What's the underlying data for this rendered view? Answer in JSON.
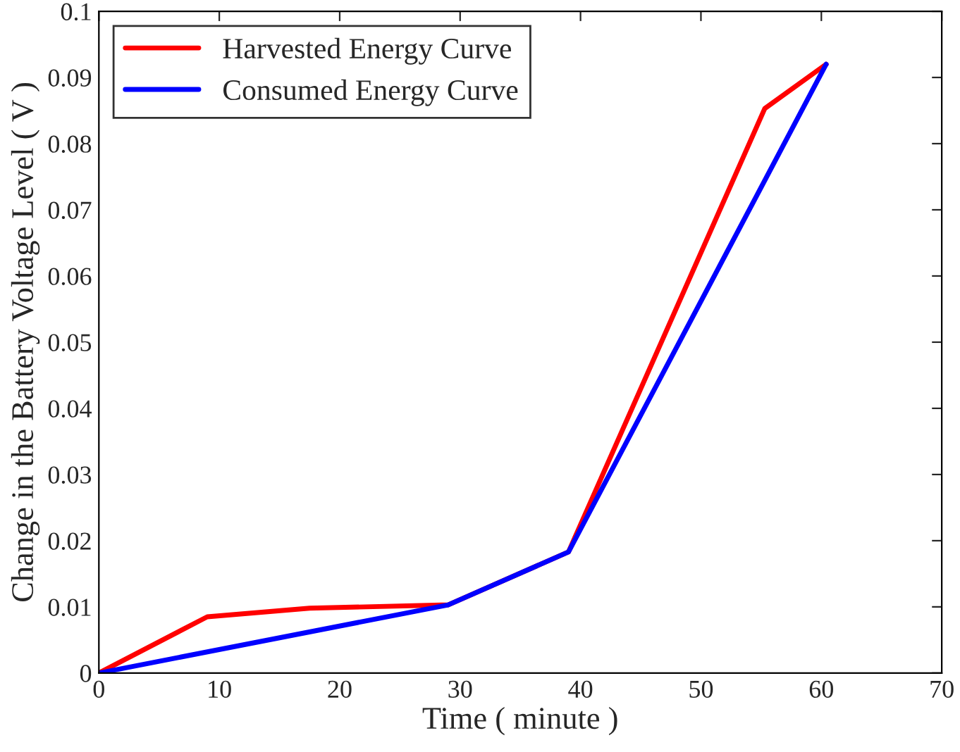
{
  "chart_data": {
    "type": "line",
    "xlabel": "Time ( minute )",
    "ylabel": "Change in the Battery Voltage Level ( V )",
    "series": [
      {
        "name": "Harvested Energy Curve",
        "color": "#ff0000",
        "x": [
          0,
          9,
          17.5,
          29,
          39,
          55.3,
          60.4
        ],
        "values": [
          0,
          0.0085,
          0.0098,
          0.0103,
          0.0183,
          0.0853,
          0.092
        ]
      },
      {
        "name": "Consumed Energy Curve",
        "color": "#0000ff",
        "x": [
          0,
          29,
          39,
          60.4
        ],
        "values": [
          0,
          0.0103,
          0.0183,
          0.092
        ]
      }
    ],
    "xlim": [
      0,
      70
    ],
    "xticks": [
      0,
      10,
      20,
      30,
      40,
      50,
      60,
      70
    ],
    "ylim": [
      0,
      0.1
    ],
    "yticks": [
      0,
      0.01,
      0.02,
      0.03,
      0.04,
      0.05,
      0.06,
      0.07,
      0.08,
      0.09,
      0.1
    ],
    "grid": false,
    "legend": "top left",
    "marker": "none",
    "line_style": "solid"
  }
}
